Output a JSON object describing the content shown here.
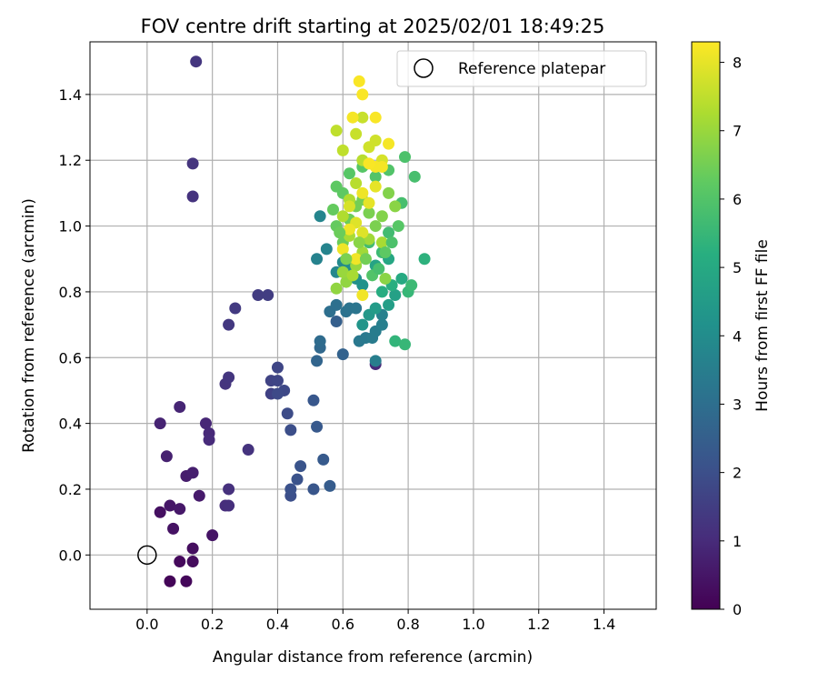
{
  "chart_data": {
    "type": "scatter",
    "title": "FOV centre drift starting at 2025/02/01 18:49:25",
    "xlabel": "Angular distance from reference (arcmin)",
    "ylabel": "Rotation from reference (arcmin)",
    "xlim": [
      -0.175,
      1.56
    ],
    "ylim": [
      -0.165,
      1.56
    ],
    "xticks": [
      0.0,
      0.2,
      0.4,
      0.6,
      0.8,
      1.0,
      1.2,
      1.4
    ],
    "xtick_labels": [
      "0.0",
      "0.2",
      "0.4",
      "0.6",
      "0.8",
      "1.0",
      "1.2",
      "1.4"
    ],
    "yticks": [
      0.0,
      0.2,
      0.4,
      0.6,
      0.8,
      1.0,
      1.2,
      1.4
    ],
    "ytick_labels": [
      "0.0",
      "0.2",
      "0.4",
      "0.6",
      "0.8",
      "1.0",
      "1.2",
      "1.4"
    ],
    "grid": true,
    "legend": {
      "placement": "top-right",
      "entries": [
        "Reference platepar"
      ]
    },
    "reference_point": {
      "name": "Reference platepar",
      "x": 0.0,
      "y": 0.0
    },
    "colorbar": {
      "label": "Hours from first FF file",
      "colormap": "viridis",
      "range": [
        0,
        8.3
      ],
      "ticks": [
        0,
        1,
        2,
        3,
        4,
        5,
        6,
        7,
        8
      ],
      "tick_labels": [
        "0",
        "1",
        "2",
        "3",
        "4",
        "5",
        "6",
        "7",
        "8"
      ]
    },
    "points": [
      [
        0.07,
        -0.08,
        0.1
      ],
      [
        0.12,
        -0.08,
        0.15
      ],
      [
        0.1,
        -0.02,
        0.2
      ],
      [
        0.14,
        -0.02,
        0.25
      ],
      [
        0.14,
        0.02,
        0.3
      ],
      [
        0.04,
        0.13,
        0.35
      ],
      [
        0.08,
        0.08,
        0.4
      ],
      [
        0.2,
        0.06,
        0.45
      ],
      [
        0.07,
        0.15,
        0.5
      ],
      [
        0.1,
        0.14,
        0.55
      ],
      [
        0.16,
        0.18,
        0.6
      ],
      [
        0.12,
        0.24,
        0.65
      ],
      [
        0.14,
        0.25,
        0.7
      ],
      [
        0.06,
        0.3,
        0.75
      ],
      [
        0.04,
        0.4,
        0.8
      ],
      [
        0.1,
        0.45,
        0.85
      ],
      [
        0.18,
        0.4,
        0.9
      ],
      [
        0.19,
        0.37,
        0.95
      ],
      [
        0.19,
        0.35,
        1.0
      ],
      [
        0.24,
        0.15,
        1.05
      ],
      [
        0.25,
        0.15,
        1.1
      ],
      [
        0.25,
        0.2,
        1.15
      ],
      [
        0.31,
        0.32,
        1.2
      ],
      [
        0.24,
        0.52,
        1.25
      ],
      [
        0.25,
        0.54,
        1.3
      ],
      [
        0.25,
        0.7,
        1.35
      ],
      [
        0.27,
        0.75,
        1.4
      ],
      [
        0.34,
        0.79,
        1.45
      ],
      [
        0.37,
        0.79,
        1.5
      ],
      [
        0.14,
        1.09,
        1.2
      ],
      [
        0.14,
        1.19,
        1.25
      ],
      [
        0.15,
        1.5,
        1.3
      ],
      [
        0.38,
        0.49,
        1.6
      ],
      [
        0.38,
        0.53,
        1.65
      ],
      [
        0.4,
        0.53,
        1.7
      ],
      [
        0.4,
        0.57,
        1.75
      ],
      [
        0.42,
        0.5,
        1.8
      ],
      [
        0.4,
        0.49,
        1.85
      ],
      [
        0.43,
        0.43,
        1.9
      ],
      [
        0.44,
        0.38,
        1.95
      ],
      [
        0.44,
        0.18,
        2.0
      ],
      [
        0.44,
        0.2,
        2.05
      ],
      [
        0.46,
        0.23,
        2.1
      ],
      [
        0.47,
        0.27,
        2.15
      ],
      [
        0.51,
        0.2,
        2.2
      ],
      [
        0.51,
        0.47,
        2.25
      ],
      [
        0.52,
        0.39,
        2.3
      ],
      [
        0.54,
        0.29,
        2.35
      ],
      [
        0.56,
        0.21,
        2.4
      ],
      [
        0.58,
        0.71,
        2.5
      ],
      [
        0.6,
        0.61,
        2.6
      ],
      [
        0.52,
        0.59,
        2.7
      ],
      [
        0.53,
        0.63,
        2.8
      ],
      [
        0.53,
        0.65,
        2.9
      ],
      [
        0.56,
        0.74,
        3.0
      ],
      [
        0.58,
        0.76,
        3.05
      ],
      [
        0.61,
        0.74,
        3.1
      ],
      [
        0.62,
        0.75,
        3.15
      ],
      [
        0.64,
        0.75,
        3.2
      ],
      [
        0.65,
        0.65,
        3.3
      ],
      [
        0.67,
        0.66,
        3.35
      ],
      [
        0.69,
        0.66,
        3.4
      ],
      [
        0.7,
        0.68,
        3.45
      ],
      [
        0.7,
        0.58,
        1.0
      ],
      [
        0.7,
        0.59,
        3.5
      ],
      [
        0.72,
        0.7,
        3.55
      ],
      [
        0.72,
        0.73,
        3.6
      ],
      [
        0.52,
        0.9,
        3.65
      ],
      [
        0.55,
        0.93,
        3.7
      ],
      [
        0.53,
        1.03,
        3.75
      ],
      [
        0.58,
        0.86,
        3.8
      ],
      [
        0.6,
        0.89,
        3.9
      ],
      [
        0.62,
        0.87,
        4.0
      ],
      [
        0.64,
        0.84,
        4.1
      ],
      [
        0.66,
        0.82,
        4.2
      ],
      [
        0.66,
        0.7,
        4.3
      ],
      [
        0.68,
        0.73,
        4.4
      ],
      [
        0.7,
        0.75,
        4.5
      ],
      [
        0.74,
        0.76,
        4.6
      ],
      [
        0.76,
        0.79,
        4.7
      ],
      [
        0.7,
        0.88,
        4.8
      ],
      [
        0.74,
        0.9,
        4.9
      ],
      [
        0.78,
        0.84,
        5.0
      ],
      [
        0.72,
        0.8,
        5.1
      ],
      [
        0.75,
        0.82,
        5.2
      ],
      [
        0.85,
        0.9,
        5.3
      ],
      [
        0.76,
        0.65,
        5.4
      ],
      [
        0.79,
        0.64,
        5.5
      ],
      [
        0.8,
        0.8,
        5.5
      ],
      [
        0.81,
        0.82,
        5.6
      ],
      [
        0.72,
        0.92,
        5.6
      ],
      [
        0.68,
        0.95,
        5.7
      ],
      [
        0.74,
        0.98,
        5.7
      ],
      [
        0.78,
        1.07,
        5.8
      ],
      [
        0.82,
        1.15,
        5.8
      ],
      [
        0.79,
        1.21,
        5.9
      ],
      [
        0.74,
        1.17,
        6.0
      ],
      [
        0.7,
        1.15,
        6.0
      ],
      [
        0.66,
        1.18,
        6.1
      ],
      [
        0.62,
        1.16,
        6.1
      ],
      [
        0.6,
        1.1,
        6.2
      ],
      [
        0.58,
        1.12,
        6.2
      ],
      [
        0.57,
        1.05,
        6.3
      ],
      [
        0.58,
        1.0,
        6.3
      ],
      [
        0.6,
        0.95,
        6.4
      ],
      [
        0.62,
        1.02,
        6.4
      ],
      [
        0.64,
        1.06,
        6.5
      ],
      [
        0.66,
        1.08,
        6.5
      ],
      [
        0.68,
        1.04,
        6.6
      ],
      [
        0.7,
        1.0,
        6.6
      ],
      [
        0.72,
        1.03,
        6.7
      ],
      [
        0.74,
        1.1,
        6.7
      ],
      [
        0.76,
        1.06,
        6.8
      ],
      [
        0.73,
        0.84,
        6.8
      ],
      [
        0.61,
        0.83,
        6.9
      ],
      [
        0.58,
        0.81,
        6.9
      ],
      [
        0.6,
        0.86,
        7.0
      ],
      [
        0.64,
        0.88,
        7.0
      ],
      [
        0.66,
        0.92,
        7.1
      ],
      [
        0.68,
        0.96,
        7.1
      ],
      [
        0.72,
        0.95,
        7.2
      ],
      [
        0.62,
        0.97,
        7.2
      ],
      [
        0.6,
        1.03,
        7.3
      ],
      [
        0.62,
        1.08,
        7.3
      ],
      [
        0.64,
        1.13,
        7.4
      ],
      [
        0.66,
        1.2,
        7.4
      ],
      [
        0.6,
        1.23,
        7.5
      ],
      [
        0.58,
        1.29,
        7.5
      ],
      [
        0.64,
        1.28,
        7.6
      ],
      [
        0.66,
        1.33,
        7.6
      ],
      [
        0.68,
        1.24,
        7.7
      ],
      [
        0.7,
        1.26,
        7.7
      ],
      [
        0.72,
        1.2,
        7.8
      ],
      [
        0.62,
        1.06,
        7.8
      ],
      [
        0.64,
        1.01,
        7.9
      ],
      [
        0.66,
        0.98,
        7.9
      ],
      [
        0.68,
        1.07,
        8.0
      ],
      [
        0.7,
        1.12,
        8.0
      ],
      [
        0.66,
        1.1,
        8.1
      ],
      [
        0.62,
        0.99,
        8.1
      ],
      [
        0.6,
        0.93,
        8.1
      ],
      [
        0.64,
        0.9,
        8.15
      ],
      [
        0.66,
        0.79,
        8.15
      ],
      [
        0.7,
        1.18,
        8.2
      ],
      [
        0.72,
        1.18,
        8.2
      ],
      [
        0.74,
        1.25,
        8.2
      ],
      [
        0.68,
        1.19,
        8.25
      ],
      [
        0.7,
        1.33,
        8.25
      ],
      [
        0.66,
        1.4,
        8.25
      ],
      [
        0.65,
        1.44,
        8.25
      ],
      [
        0.63,
        1.33,
        8.2
      ],
      [
        0.69,
        0.85,
        6.0
      ],
      [
        0.71,
        0.87,
        5.8
      ],
      [
        0.73,
        0.92,
        6.2
      ],
      [
        0.75,
        0.95,
        5.9
      ],
      [
        0.77,
        1.0,
        6.1
      ],
      [
        0.67,
        0.9,
        6.5
      ],
      [
        0.65,
        0.95,
        6.8
      ],
      [
        0.63,
        0.85,
        7.2
      ],
      [
        0.61,
        0.9,
        6.6
      ],
      [
        0.59,
        0.98,
        6.4
      ]
    ]
  }
}
